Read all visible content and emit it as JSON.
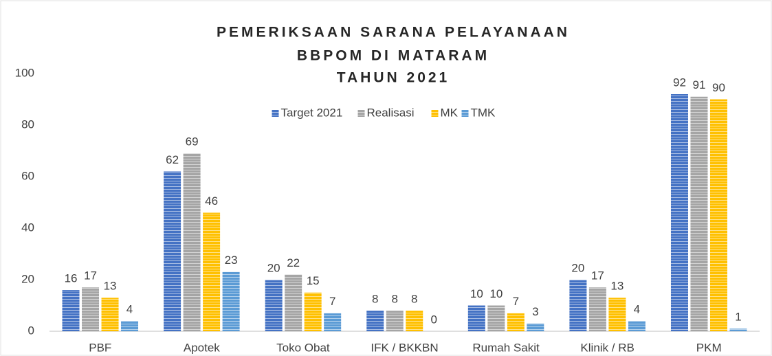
{
  "chart_data": {
    "type": "bar",
    "title": [
      "PEMERIKSAAN SARANA PELAYANAAN",
      "BBPOM DI MATARAM",
      "TAHUN 2021"
    ],
    "categories": [
      "PBF",
      "Apotek",
      "Toko Obat",
      "IFK / BKKBN",
      "Rumah Sakit",
      "Klinik / RB",
      "PKM"
    ],
    "series": [
      {
        "name": "Target 2021",
        "color": "#4472c4",
        "values": [
          16,
          62,
          20,
          8,
          10,
          20,
          92
        ]
      },
      {
        "name": "Realisasi",
        "color": "#a5a5a5",
        "values": [
          17,
          69,
          22,
          8,
          10,
          17,
          91
        ]
      },
      {
        "name": "MK",
        "color": "#ffc000",
        "values": [
          13,
          46,
          15,
          8,
          7,
          13,
          90
        ]
      },
      {
        "name": "TMK",
        "color": "#5b9bd5",
        "values": [
          4,
          23,
          7,
          0,
          3,
          4,
          1
        ]
      }
    ],
    "ylim": [
      0,
      100
    ],
    "yticks": [
      0,
      20,
      40,
      60,
      80,
      100
    ],
    "grid": false,
    "legend": "top"
  }
}
